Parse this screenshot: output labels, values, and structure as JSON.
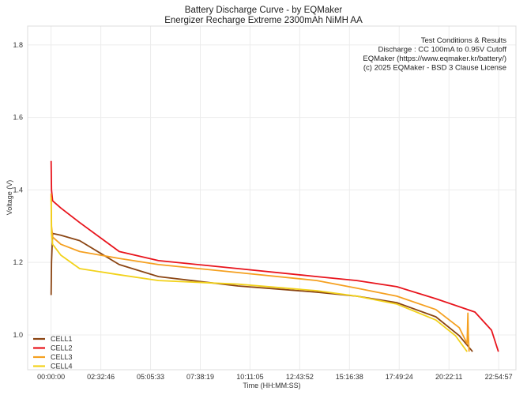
{
  "chart_data": {
    "type": "line",
    "title": "Battery Discharge Curve - by EQMaker",
    "subtitle": "Energizer Recharge Extreme 2300mAh NiMH AA",
    "xlabel": "Time (HH:MM:SS)",
    "ylabel": "Voltage (V)",
    "x_unit": "hours",
    "xlim": [
      -1.2,
      23.8
    ],
    "ylim": [
      0.904,
      1.852
    ],
    "grid": true,
    "legend_position": "bottom-left",
    "x_ticks": [
      {
        "value": 0,
        "label": "00:00:00"
      },
      {
        "value": 2.546,
        "label": "02:32:46"
      },
      {
        "value": 5.093,
        "label": "05:05:33"
      },
      {
        "value": 7.639,
        "label": "07:38:19"
      },
      {
        "value": 10.185,
        "label": "10:11:05"
      },
      {
        "value": 12.731,
        "label": "12:43:52"
      },
      {
        "value": 15.277,
        "label": "15:16:38"
      },
      {
        "value": 17.823,
        "label": "17:49:24"
      },
      {
        "value": 20.37,
        "label": "20:22:11"
      },
      {
        "value": 22.916,
        "label": "22:54:57"
      }
    ],
    "y_ticks": [
      {
        "value": 1.0,
        "label": "1.0"
      },
      {
        "value": 1.2,
        "label": "1.2"
      },
      {
        "value": 1.4,
        "label": "1.4"
      },
      {
        "value": 1.6,
        "label": "1.6"
      },
      {
        "value": 1.8,
        "label": "1.8"
      }
    ],
    "annotation": [
      "Test Conditions & Results",
      "Discharge : CC 100mA to 0.95V Cutoff",
      "EQMaker (https://www.eqmaker.kr/battery/)",
      "(c) 2025 EQMaker - BSD 3 Clause License"
    ],
    "series": [
      {
        "name": "CELL1",
        "color": "#8b4513",
        "x": [
          0,
          0.02,
          0.08,
          0.5,
          1.46,
          3.49,
          5.5,
          9.57,
          13.6,
          15.65,
          17.7,
          19.7,
          20.9,
          21.58
        ],
        "y": [
          1.11,
          1.2,
          1.28,
          1.275,
          1.26,
          1.194,
          1.161,
          1.135,
          1.118,
          1.107,
          1.089,
          1.05,
          0.998,
          0.954
        ]
      },
      {
        "name": "CELL2",
        "color": "#e8141c",
        "x": [
          0,
          0.02,
          0.08,
          0.5,
          1.46,
          3.49,
          5.5,
          9.57,
          13.6,
          15.65,
          17.7,
          19.7,
          21.7,
          22.55,
          22.9
        ],
        "y": [
          1.48,
          1.4,
          1.37,
          1.35,
          1.31,
          1.23,
          1.205,
          1.183,
          1.161,
          1.15,
          1.133,
          1.1,
          1.063,
          1.013,
          0.954
        ]
      },
      {
        "name": "CELL3",
        "color": "#f5a020",
        "x": [
          0,
          0.02,
          0.08,
          0.5,
          1.46,
          3.49,
          5.5,
          9.57,
          13.6,
          15.65,
          17.7,
          19.7,
          20.9,
          21.3,
          21.34,
          21.36,
          21.4
        ],
        "y": [
          1.39,
          1.3,
          1.27,
          1.25,
          1.23,
          1.211,
          1.194,
          1.172,
          1.15,
          1.129,
          1.107,
          1.07,
          1.02,
          0.976,
          1.06,
          1.0,
          0.954
        ]
      },
      {
        "name": "CELL4",
        "color": "#f2d21b",
        "x": [
          0,
          0.02,
          0.08,
          0.5,
          1.46,
          3.49,
          5.5,
          9.57,
          13.6,
          15.65,
          17.7,
          19.7,
          20.7,
          21.3
        ],
        "y": [
          1.38,
          1.28,
          1.25,
          1.22,
          1.183,
          1.166,
          1.15,
          1.14,
          1.122,
          1.107,
          1.085,
          1.041,
          0.998,
          0.954
        ]
      }
    ]
  }
}
